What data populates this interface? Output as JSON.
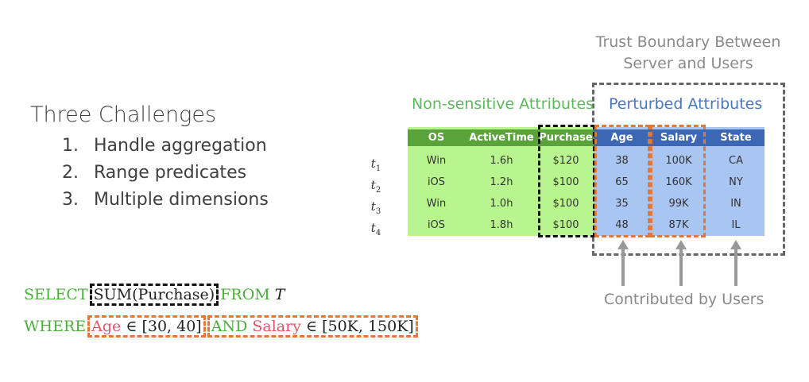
{
  "challenges": {
    "title": "Three Challenges",
    "items": [
      {
        "num": "1.",
        "text": "Handle aggregation"
      },
      {
        "num": "2.",
        "text": "Range predicates"
      },
      {
        "num": "3.",
        "text": "Multiple dimensions"
      }
    ]
  },
  "trust_boundary": {
    "line1": "Trust Boundary Between",
    "line2": "Server and Users"
  },
  "groups": {
    "non_sensitive": "Non-sensitive Attributes",
    "perturbed": "Perturbed Attributes"
  },
  "table": {
    "headers": [
      "OS",
      "ActiveTime",
      "Purchase",
      "Age",
      "Salary",
      "State"
    ],
    "row_labels": [
      {
        "base": "t",
        "sub": "1"
      },
      {
        "base": "t",
        "sub": "2"
      },
      {
        "base": "t",
        "sub": "3"
      },
      {
        "base": "t",
        "sub": "4"
      }
    ],
    "rows": [
      [
        "Win",
        "1.6h",
        "$120",
        "38",
        "100K",
        "CA"
      ],
      [
        "iOS",
        "1.2h",
        "$100",
        "65",
        "160K",
        "NY"
      ],
      [
        "Win",
        "1.0h",
        "$100",
        "35",
        "99K",
        "IN"
      ],
      [
        "iOS",
        "1.8h",
        "$100",
        "48",
        "87K",
        "IL"
      ]
    ]
  },
  "contributed_label": "Contributed by Users",
  "sql": {
    "select_kw": "SELECT",
    "agg": "SUM(Purchase)",
    "from_kw": "FROM",
    "table_name": "T",
    "where_kw": "WHERE",
    "age_attr": "Age",
    "age_range": "∈ [30, 40]",
    "and_kw": "AND",
    "salary_attr": "Salary",
    "salary_range": "∈ [50K, 150K]"
  },
  "colors": {
    "green_header": "#5aa33b",
    "blue_header": "#3b67b4",
    "green_bg": "#b8f58f",
    "blue_bg": "#a9c5f2",
    "orange": "#e0783a"
  }
}
